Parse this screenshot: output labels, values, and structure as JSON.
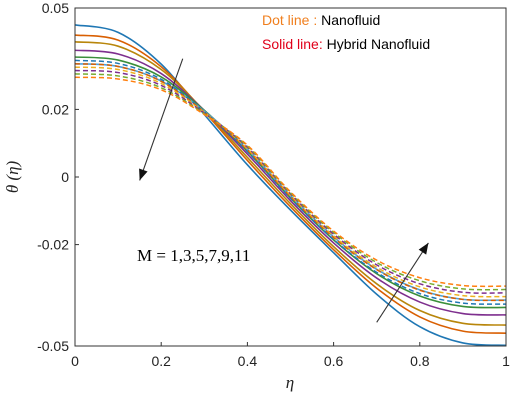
{
  "chart_data": {
    "type": "line",
    "title": "",
    "xlabel": "η",
    "ylabel": "θ (η)",
    "xlim": [
      0,
      1
    ],
    "ylim": [
      -0.05,
      0.05
    ],
    "x_ticks": [
      "0",
      "0.2",
      "0.4",
      "0.6",
      "0.8",
      "1"
    ],
    "y_ticks": [
      "0.05",
      "0.02",
      "0",
      "-0.02",
      "-0.05"
    ],
    "y_tick_values": [
      0.05,
      0.02,
      0,
      -0.02,
      -0.05
    ],
    "x": [
      0,
      0.1,
      0.2,
      0.3,
      0.4,
      0.5,
      0.6,
      0.7,
      0.8,
      0.9,
      1.0
    ],
    "legend": {
      "placement": "top-right",
      "dot_key": "Dot line",
      "dot_sep": " : ",
      "dot_label": "Nanofluid",
      "solid_key": "Solid line",
      "solid_sep": ": ",
      "solid_label": "Hybrid Nanofluid",
      "dot_color": "#f07f1e",
      "solid_color": "#e0001a"
    },
    "annotation": "M = 1,3,5,7,9,11",
    "series": [
      {
        "style": "solid",
        "color": "#1f77b4",
        "values": [
          0.045,
          0.0428,
          0.0334,
          0.0185,
          0.0036,
          -0.0098,
          -0.0224,
          -0.0347,
          -0.0443,
          -0.0491,
          -0.0498
        ]
      },
      {
        "style": "solid",
        "color": "#d95f02",
        "values": [
          0.042,
          0.0405,
          0.0326,
          0.0193,
          0.0049,
          -0.0088,
          -0.0215,
          -0.0329,
          -0.0414,
          -0.0456,
          -0.0462
        ]
      },
      {
        "style": "solid",
        "color": "#b8860b",
        "values": [
          0.04,
          0.0387,
          0.0318,
          0.0196,
          0.0058,
          -0.0079,
          -0.0206,
          -0.0316,
          -0.0395,
          -0.0433,
          -0.0438
        ]
      },
      {
        "style": "solid",
        "color": "#7e2f8e",
        "values": [
          0.0375,
          0.0364,
          0.0306,
          0.0197,
          0.0068,
          -0.007,
          -0.0195,
          -0.0299,
          -0.037,
          -0.0404,
          -0.0408
        ]
      },
      {
        "style": "solid",
        "color": "#3a8f3a",
        "values": [
          0.0355,
          0.0346,
          0.0296,
          0.0197,
          0.0076,
          -0.0062,
          -0.0186,
          -0.0286,
          -0.0352,
          -0.0383,
          -0.0386
        ]
      },
      {
        "style": "solid",
        "color": "#4fa3d9",
        "values": [
          0.0335,
          0.0327,
          0.0284,
          0.0195,
          0.0082,
          -0.0055,
          -0.0177,
          -0.0273,
          -0.0334,
          -0.0362,
          -0.0364
        ]
      },
      {
        "style": "dashed",
        "color": "#1f77b4",
        "values": [
          0.0345,
          0.0336,
          0.0289,
          0.0193,
          0.0075,
          -0.0063,
          -0.0185,
          -0.0282,
          -0.0345,
          -0.0373,
          -0.0376
        ]
      },
      {
        "style": "dashed",
        "color": "#d95f02",
        "values": [
          0.0335,
          0.0327,
          0.0283,
          0.0192,
          0.008,
          -0.0058,
          -0.0179,
          -0.0274,
          -0.0335,
          -0.0362,
          -0.0365
        ]
      },
      {
        "style": "dashed",
        "color": "#edb120",
        "values": [
          0.0325,
          0.0318,
          0.0277,
          0.0191,
          0.0084,
          -0.0054,
          -0.0174,
          -0.0267,
          -0.0325,
          -0.0351,
          -0.0354
        ]
      },
      {
        "style": "dashed",
        "color": "#7e2f8e",
        "values": [
          0.0315,
          0.0309,
          0.0271,
          0.0189,
          0.0088,
          -0.005,
          -0.0169,
          -0.026,
          -0.0316,
          -0.0341,
          -0.0343
        ]
      },
      {
        "style": "dashed",
        "color": "#77ac30",
        "values": [
          0.0305,
          0.0299,
          0.0264,
          0.0187,
          0.0091,
          -0.0047,
          -0.0164,
          -0.0253,
          -0.0307,
          -0.0331,
          -0.0333
        ]
      },
      {
        "style": "dashed",
        "color": "#ff7f0e",
        "values": [
          0.0295,
          0.029,
          0.0258,
          0.0185,
          0.0094,
          -0.0044,
          -0.016,
          -0.0246,
          -0.0298,
          -0.0321,
          -0.0323
        ]
      }
    ],
    "arrows": [
      {
        "from": [
          0.25,
          0.035
        ],
        "to": [
          0.15,
          -0.001
        ]
      },
      {
        "from": [
          0.7,
          -0.043
        ],
        "to": [
          0.82,
          -0.0195
        ]
      }
    ],
    "grid": false
  }
}
